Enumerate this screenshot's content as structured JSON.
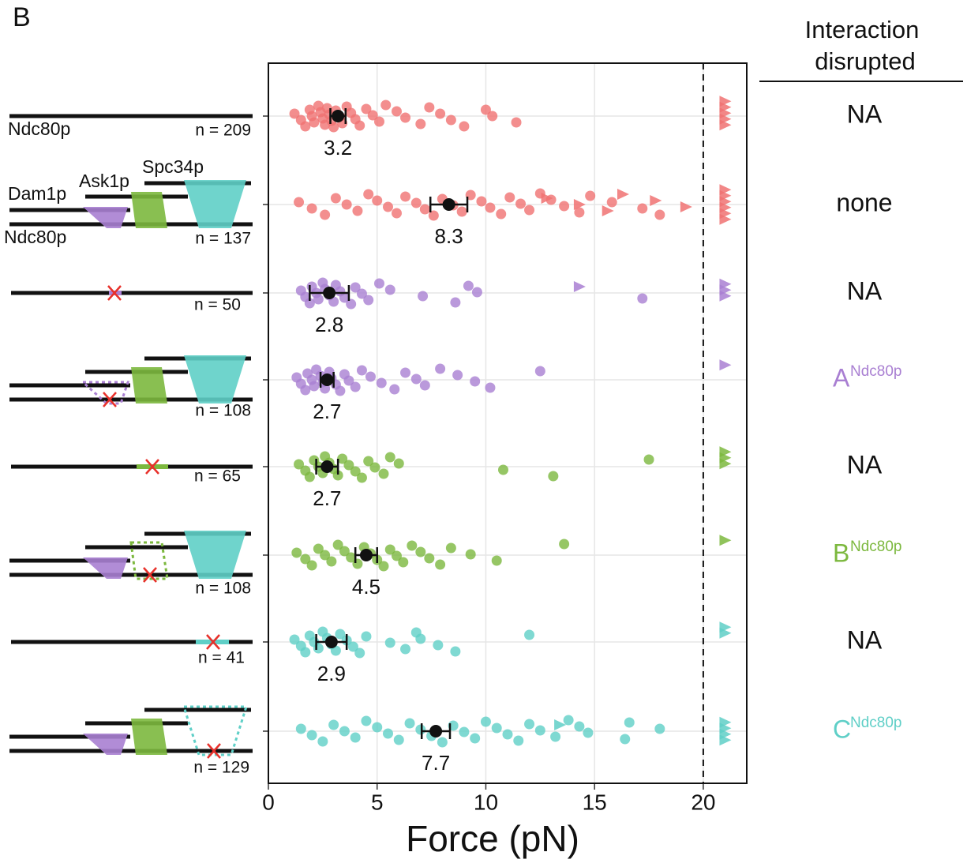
{
  "chart_data": {
    "type": "strip",
    "panel_label": "B",
    "xlabel": "Force (pN)",
    "xlim": [
      0,
      22
    ],
    "xticks": [
      0,
      5,
      10,
      15,
      20
    ],
    "grid": true,
    "threshold": 20,
    "header": [
      "Interaction",
      "disrupted"
    ],
    "diagram_labels": {
      "ndc80_top": "Ndc80p",
      "dam1": "Dam1p",
      "ask1": "Ask1p",
      "spc34": "Spc34p",
      "ndc80_bottom": "Ndc80p"
    },
    "rows": [
      {
        "color": "#f07272",
        "n_label": "n = 209",
        "mean": 3.2,
        "error": 0.35,
        "disrupted": "NA",
        "values": [
          1.2,
          1.5,
          1.7,
          1.9,
          2.0,
          2.1,
          2.3,
          2.4,
          2.5,
          2.6,
          2.7,
          2.8,
          2.9,
          3.0,
          3.1,
          3.3,
          3.4,
          3.6,
          3.8,
          4.0,
          4.2,
          4.5,
          4.8,
          5.1,
          5.4,
          5.9,
          6.3,
          7.0,
          7.4,
          7.9,
          8.4,
          9.0,
          10.0,
          10.3,
          11.4
        ],
        "censored": [
          21,
          21,
          21,
          21,
          21
        ]
      },
      {
        "color": "#f07272",
        "n_label": "n = 137",
        "mean": 8.3,
        "error": 0.85,
        "disrupted": "none",
        "values": [
          1.4,
          2.0,
          2.6,
          3.1,
          3.6,
          4.1,
          4.6,
          5.0,
          5.5,
          5.9,
          6.3,
          6.8,
          7.2,
          7.6,
          8.0,
          8.5,
          8.9,
          9.3,
          9.8,
          10.2,
          10.7,
          11.1,
          11.6,
          12.0,
          12.5,
          13.0,
          13.6,
          14.3,
          14.8,
          15.8,
          17.2,
          18.0
        ],
        "censored": [
          12.8,
          14.3,
          15.6,
          16.3,
          17.8,
          19.2,
          21,
          21,
          21,
          21,
          21,
          21
        ]
      },
      {
        "color": "#a97fd2",
        "n_label": "n = 50",
        "mean": 2.8,
        "error": 0.9,
        "disrupted": "NA",
        "values": [
          1.5,
          1.7,
          1.9,
          2.0,
          2.2,
          2.3,
          2.5,
          2.6,
          2.8,
          3.0,
          3.1,
          3.3,
          3.5,
          3.8,
          4.0,
          4.3,
          4.6,
          5.1,
          5.6,
          7.1,
          8.6,
          9.2,
          9.6,
          17.2
        ],
        "censored": [
          14.3,
          21,
          21,
          21
        ]
      },
      {
        "color": "#a97fd2",
        "n_label": "n = 108",
        "mean": 2.7,
        "error": 0.3,
        "disrupted": {
          "text": "A",
          "sup": "Ndc80p"
        },
        "values": [
          1.3,
          1.5,
          1.7,
          1.8,
          2.0,
          2.1,
          2.2,
          2.4,
          2.5,
          2.6,
          2.8,
          2.9,
          3.1,
          3.3,
          3.5,
          3.7,
          4.0,
          4.3,
          4.7,
          5.2,
          5.8,
          6.3,
          6.8,
          7.2,
          7.9,
          8.7,
          9.5,
          10.2,
          12.5
        ],
        "censored": [
          21
        ]
      },
      {
        "color": "#7cb83e",
        "n_label": "n = 65",
        "mean": 2.7,
        "error": 0.5,
        "disrupted": "NA",
        "values": [
          1.4,
          1.7,
          1.9,
          2.1,
          2.3,
          2.5,
          2.6,
          2.8,
          3.0,
          3.2,
          3.4,
          3.7,
          4.0,
          4.3,
          4.6,
          4.9,
          5.3,
          5.6,
          6.0,
          10.8,
          13.1,
          17.5
        ],
        "censored": [
          21,
          21,
          21
        ]
      },
      {
        "color": "#7cb83e",
        "n_label": "n = 108",
        "mean": 4.5,
        "error": 0.5,
        "disrupted": {
          "text": "B",
          "sup": "Ndc80p"
        },
        "values": [
          1.3,
          1.7,
          2.0,
          2.3,
          2.6,
          2.9,
          3.2,
          3.5,
          3.8,
          4.1,
          4.4,
          4.7,
          5.0,
          5.3,
          5.6,
          5.9,
          6.2,
          6.6,
          7.0,
          7.4,
          7.9,
          8.4,
          9.3,
          10.5,
          13.6
        ],
        "censored": [
          21
        ]
      },
      {
        "color": "#5fcfc7",
        "n_label": "n = 41",
        "mean": 2.9,
        "error": 0.7,
        "disrupted": "NA",
        "values": [
          1.2,
          1.5,
          1.7,
          1.9,
          2.1,
          2.3,
          2.5,
          2.7,
          2.9,
          3.1,
          3.3,
          3.6,
          3.9,
          4.2,
          4.5,
          5.6,
          6.3,
          6.8,
          7.0,
          7.8,
          8.6,
          12.0
        ],
        "censored": [
          21,
          21
        ]
      },
      {
        "color": "#5fcfc7",
        "n_label": "n = 129",
        "mean": 7.7,
        "error": 0.65,
        "disrupted": {
          "text": "C",
          "sup": "Ndc80p"
        },
        "values": [
          1.5,
          2.0,
          2.5,
          3.0,
          3.5,
          4.0,
          4.5,
          5.0,
          5.5,
          6.0,
          6.5,
          7.0,
          7.5,
          8.0,
          8.5,
          9.0,
          9.5,
          10.0,
          10.5,
          11.0,
          11.5,
          12.0,
          12.5,
          13.2,
          13.8,
          14.3,
          14.7,
          16.4,
          16.6,
          18.0
        ],
        "censored": [
          13.4,
          21,
          21,
          21,
          21
        ]
      }
    ]
  }
}
